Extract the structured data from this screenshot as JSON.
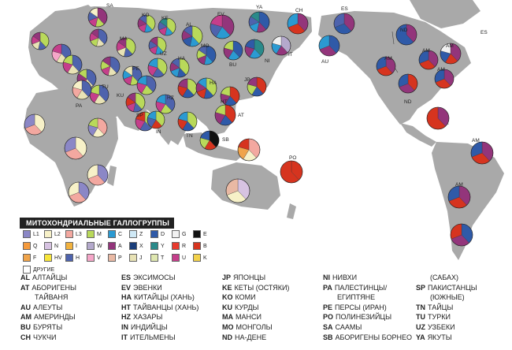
{
  "legend": {
    "title": "МИТОХОНДРИАЛЬНЫЕ ГАЛЛОГРУППЫ",
    "items": [
      {
        "label": "L1",
        "color": "#8b87c6"
      },
      {
        "label": "L2",
        "color": "#f7f1c8"
      },
      {
        "label": "L3",
        "color": "#f3a8a0"
      },
      {
        "label": "M",
        "color": "#b9d95a"
      },
      {
        "label": "C",
        "color": "#2b9ad2"
      },
      {
        "label": "Z",
        "color": "#cfe9f6"
      },
      {
        "label": "D",
        "color": "#2f5aa8"
      },
      {
        "label": "G",
        "color": "#f1f1f1"
      },
      {
        "label": "E",
        "color": "#111111"
      },
      {
        "label": "Q",
        "color": "#f59a3c"
      },
      {
        "label": "N",
        "color": "#d7c3e2"
      },
      {
        "label": "I",
        "color": "#f2b23e"
      },
      {
        "label": "W",
        "color": "#b4a9cc"
      },
      {
        "label": "A",
        "color": "#93357b"
      },
      {
        "label": "X",
        "color": "#1a3e7a"
      },
      {
        "label": "Y",
        "color": "#2a8a8a"
      },
      {
        "label": "R",
        "color": "#e83a2d"
      },
      {
        "label": "B",
        "color": "#d6341f"
      },
      {
        "label": "F",
        "color": "#f0a44a"
      },
      {
        "label": "HV",
        "color": "#f7e53b"
      },
      {
        "label": "H",
        "color": "#4e63ad"
      },
      {
        "label": "V",
        "color": "#f5a6c8"
      },
      {
        "label": "P",
        "color": "#e9b9a4"
      },
      {
        "label": "J",
        "color": "#e8e2b5"
      },
      {
        "label": "T",
        "color": "#dfe7b0"
      },
      {
        "label": "U",
        "color": "#c53e8b"
      },
      {
        "label": "K",
        "color": "#f3d24b"
      },
      {
        "label": "ДРУГИЕ",
        "color": "#ffffff"
      }
    ]
  },
  "populations": [
    [
      [
        {
          "code": "AL",
          "name": "АЛТАЙЦЫ"
        },
        {
          "code": "AT",
          "name": "АБОРИГЕНЫ"
        },
        {
          "code": "",
          "name": "ТАЙВАНЯ"
        },
        {
          "code": "AU",
          "name": "АЛЕУТЫ"
        },
        {
          "code": "AM",
          "name": "АМЕРИНДЫ"
        },
        {
          "code": "BU",
          "name": "БУРЯТЫ"
        },
        {
          "code": "CH",
          "name": "ЧУКЧИ"
        }
      ],
      [
        {
          "code": "ES",
          "name": "ЭКСИМОСЫ"
        },
        {
          "code": "EV",
          "name": "ЭВЕНКИ"
        },
        {
          "code": "HA",
          "name": "КИТАЙЦЫ (ХАНЬ)"
        },
        {
          "code": "HT",
          "name": "ТАЙВАНЦЫ (ХАНЬ)"
        },
        {
          "code": "HZ",
          "name": "ХАЗАРЫ"
        },
        {
          "code": "IN",
          "name": "ИНДИЙЦЫ"
        },
        {
          "code": "IT",
          "name": "ИТЕЛЬМЕНЫ"
        }
      ],
      [
        {
          "code": "JP",
          "name": "ЯПОНЦЫ"
        },
        {
          "code": "KE",
          "name": "КЕТЫ (ОСТЯКИ)"
        },
        {
          "code": "KO",
          "name": "КОМИ"
        },
        {
          "code": "KU",
          "name": "КУРДЫ"
        },
        {
          "code": "MA",
          "name": "МАНСИ"
        },
        {
          "code": "MO",
          "name": "МОНГОЛЫ"
        },
        {
          "code": "ND",
          "name": "НА-ДЕНЕ"
        }
      ],
      [
        {
          "code": "NI",
          "name": "НИВХИ"
        },
        {
          "code": "PA",
          "name": "ПАЛЕСТИНЦЫ/"
        },
        {
          "code": "",
          "name": "ЕГИПТЯНЕ"
        },
        {
          "code": "PE",
          "name": "ПЕРСЫ (ИРАН)"
        },
        {
          "code": "PO",
          "name": "ПОЛИНЕЗИЙЦЫ"
        },
        {
          "code": "SA",
          "name": "СААМЫ"
        },
        {
          "code": "SB",
          "name": "АБОРИГЕНЫ БОРНЕО"
        }
      ],
      [
        {
          "code": "",
          "name": "(САБАХ)"
        },
        {
          "code": "SP",
          "name": "ПАКИСТАНЦЫ"
        },
        {
          "code": "",
          "name": "(ЮЖНЫЕ)"
        },
        {
          "code": "TN",
          "name": "ТАЙЦЫ"
        },
        {
          "code": "TU",
          "name": "ТУРКИ"
        },
        {
          "code": "UZ",
          "name": "УЗБЕКИ"
        },
        {
          "code": "YA",
          "name": "ЯКУТЫ"
        }
      ]
    ]
  ],
  "map_labels": [
    "SA",
    "KO",
    "KE",
    "EV",
    "YA",
    "CH",
    "ES",
    "ES",
    "AL",
    "MA",
    "MO",
    "UZ",
    "NI",
    "IT",
    "BU",
    "AU",
    "ND",
    "AM",
    "AM",
    "AM",
    "AM",
    "ND",
    "AM",
    "AM",
    "JP",
    "HA",
    "HA",
    "HT",
    "AT",
    "SB",
    "TN",
    "IN",
    "HZ",
    "SP",
    "KU",
    "PE",
    "TU",
    "PA",
    "PO"
  ]
}
